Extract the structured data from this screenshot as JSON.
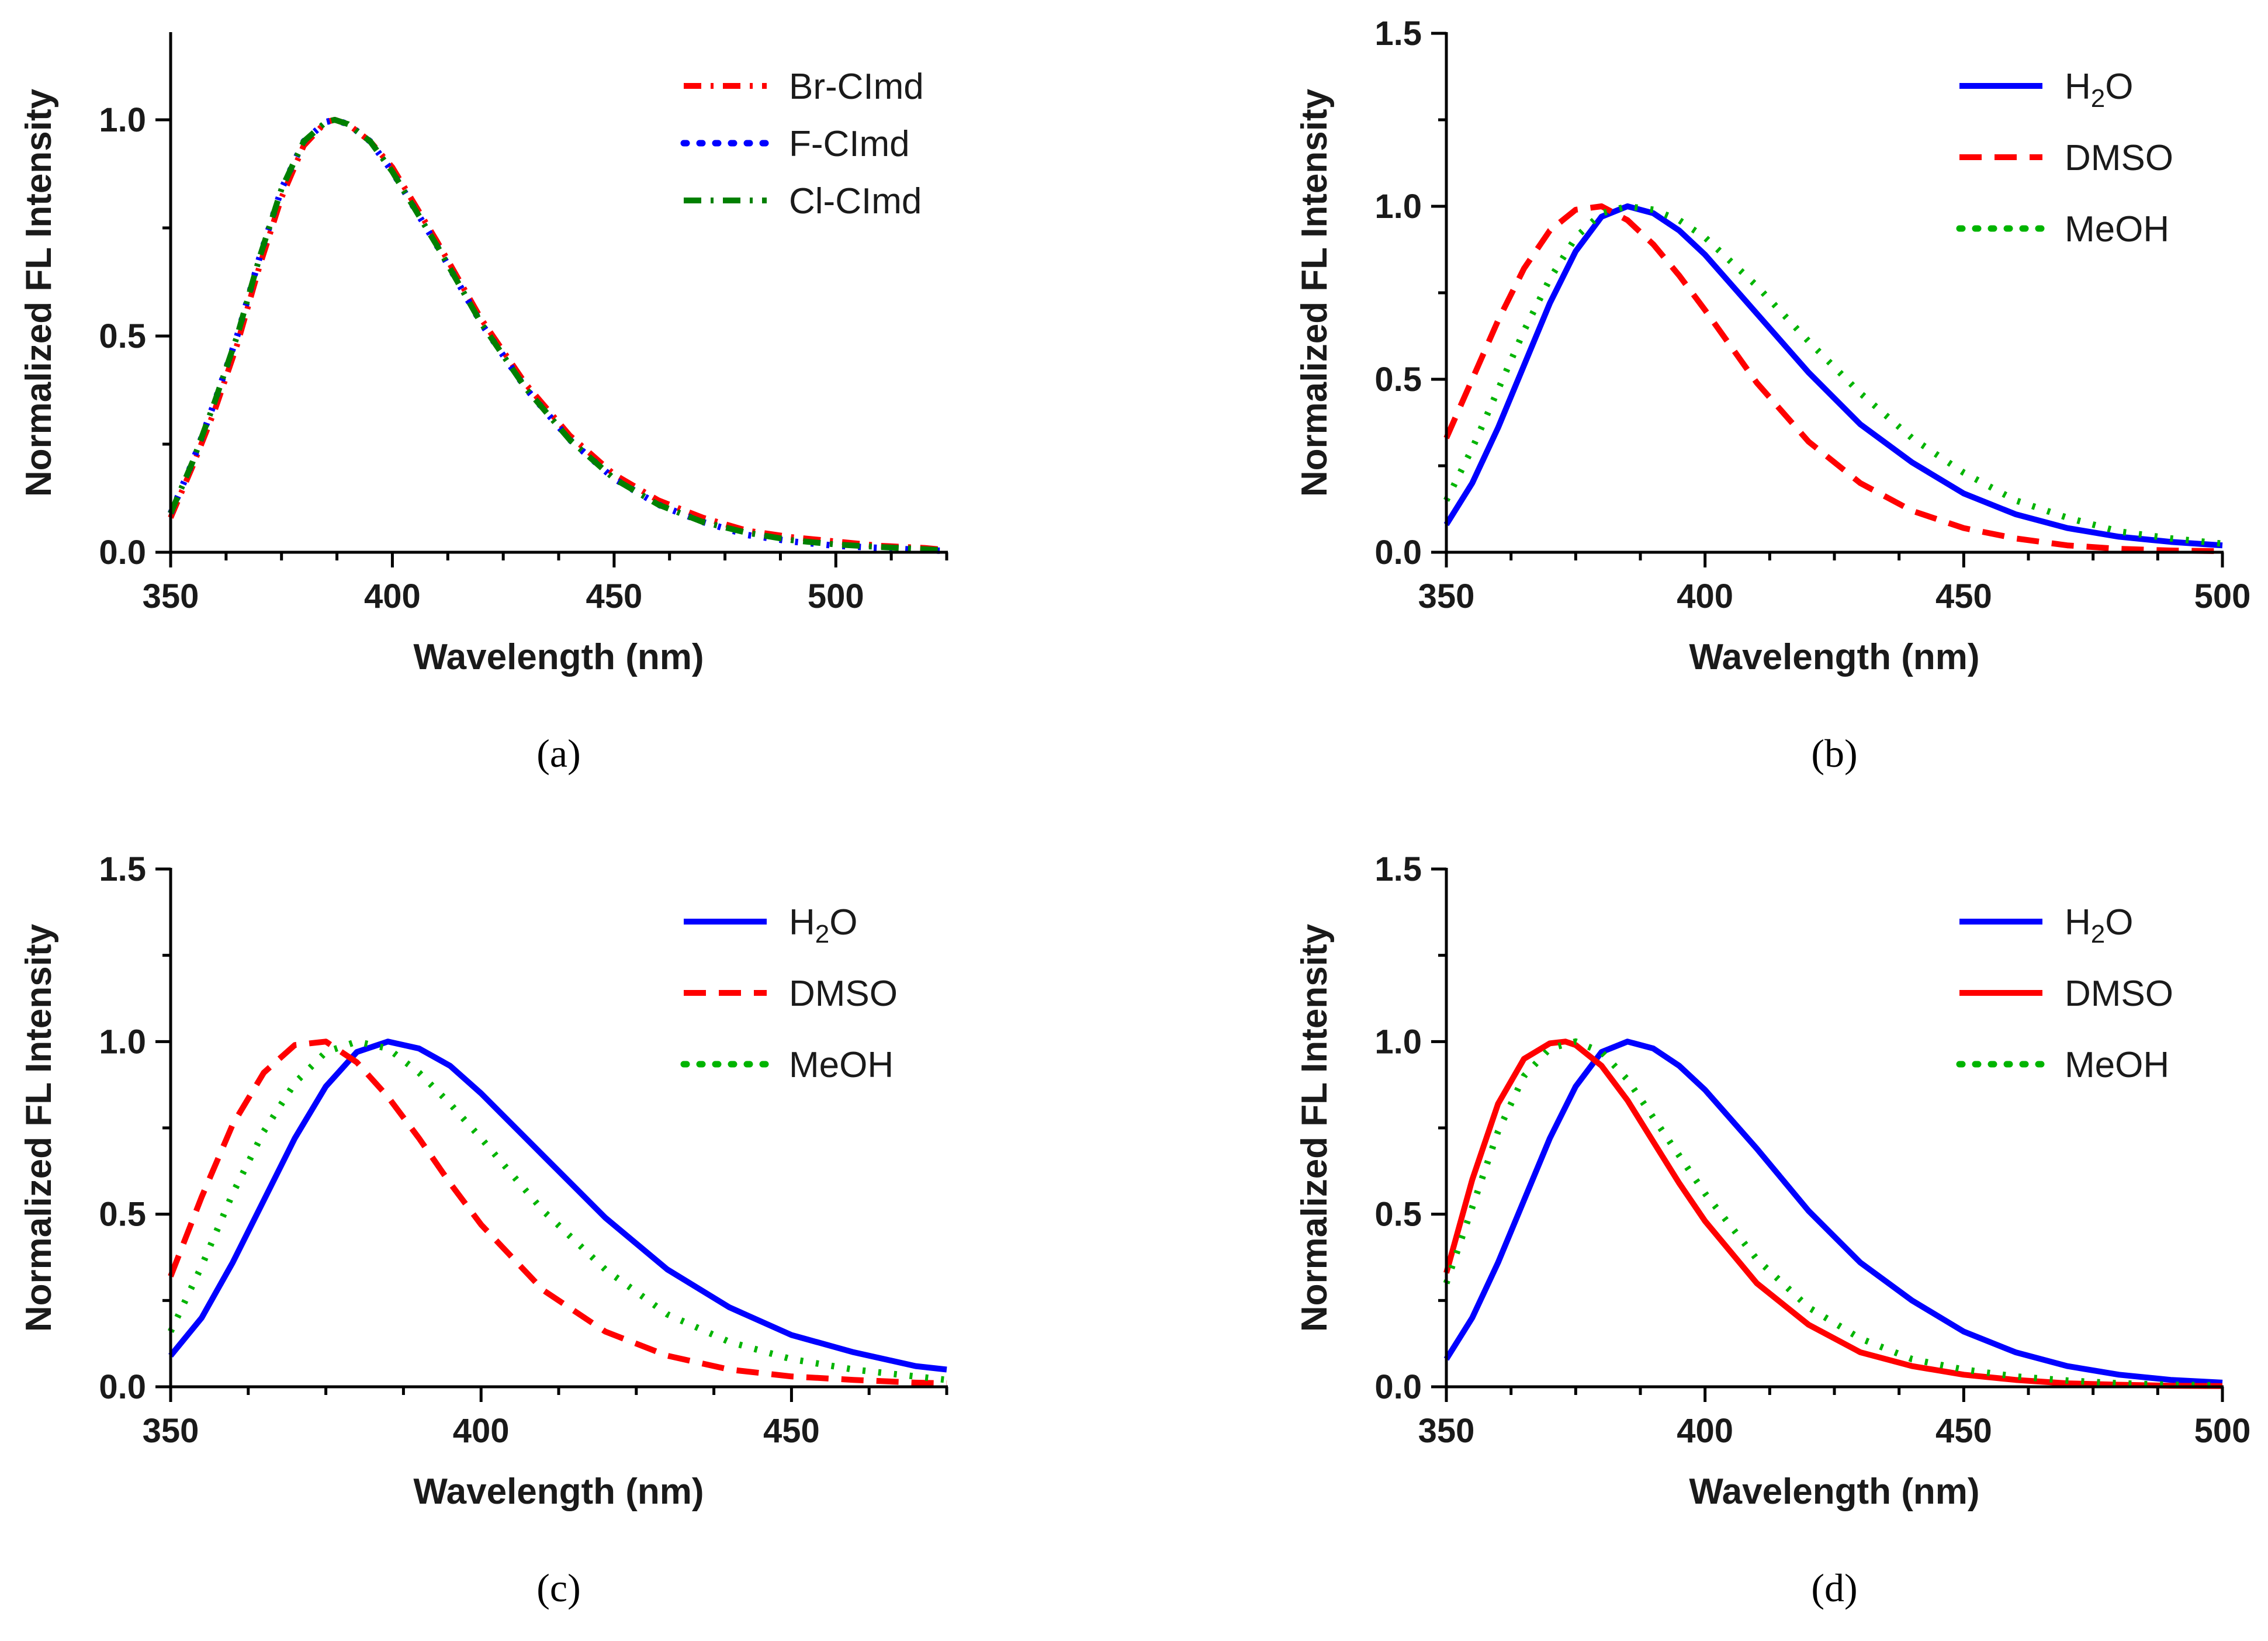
{
  "chart_data": [
    {
      "type": "line",
      "panel_label": "(a)",
      "xlabel": "Wavelength (nm)",
      "ylabel": "Normalized FL Intensity",
      "xlim": [
        350,
        525
      ],
      "ylim": [
        0,
        1.2
      ],
      "xticks": [
        350,
        400,
        450,
        500
      ],
      "xtick_labels": [
        "350",
        "400",
        "450",
        "500"
      ],
      "yticks": [
        0,
        0.5,
        1.0
      ],
      "ytick_labels": [
        "0.0",
        "0.5",
        "1.0"
      ],
      "legend_position": "top-right",
      "series": [
        {
          "name": "Br-CImd",
          "color": "#ff0000",
          "style": "dashdot",
          "x": [
            350,
            355,
            360,
            365,
            370,
            375,
            380,
            385,
            387,
            390,
            395,
            400,
            410,
            420,
            430,
            440,
            450,
            460,
            470,
            480,
            490,
            500,
            510,
            520,
            525
          ],
          "y": [
            0.08,
            0.2,
            0.33,
            0.48,
            0.66,
            0.82,
            0.94,
            0.995,
            1.0,
            0.99,
            0.95,
            0.89,
            0.72,
            0.54,
            0.39,
            0.27,
            0.18,
            0.12,
            0.08,
            0.05,
            0.035,
            0.025,
            0.015,
            0.01,
            0.005
          ]
        },
        {
          "name": "F-CImd",
          "color": "#0000ff",
          "style": "dotted",
          "x": [
            350,
            355,
            360,
            365,
            370,
            375,
            380,
            385,
            387,
            390,
            395,
            400,
            410,
            420,
            430,
            440,
            450,
            460,
            470,
            480,
            490,
            500,
            510,
            520,
            525
          ],
          "y": [
            0.09,
            0.21,
            0.35,
            0.5,
            0.68,
            0.84,
            0.95,
            0.995,
            1.0,
            0.99,
            0.95,
            0.88,
            0.71,
            0.53,
            0.38,
            0.26,
            0.17,
            0.11,
            0.07,
            0.04,
            0.025,
            0.015,
            0.01,
            0.005,
            0.003
          ]
        },
        {
          "name": "Cl-CImd",
          "color": "#008000",
          "style": "dashdot",
          "x": [
            350,
            355,
            360,
            365,
            370,
            375,
            380,
            385,
            387,
            390,
            395,
            400,
            410,
            420,
            430,
            440,
            450,
            460,
            470,
            480,
            490,
            500,
            510,
            520,
            525
          ],
          "y": [
            0.09,
            0.21,
            0.35,
            0.5,
            0.68,
            0.84,
            0.95,
            0.995,
            1.0,
            0.99,
            0.95,
            0.88,
            0.71,
            0.53,
            0.38,
            0.26,
            0.17,
            0.11,
            0.07,
            0.045,
            0.028,
            0.018,
            0.012,
            0.007,
            0.004
          ]
        }
      ]
    },
    {
      "type": "line",
      "panel_label": "(b)",
      "xlabel": "Wavelength (nm)",
      "ylabel": "Normalized FL Intensity",
      "xlim": [
        350,
        500
      ],
      "ylim": [
        0,
        1.5
      ],
      "xticks": [
        350,
        400,
        450,
        500
      ],
      "xtick_labels": [
        "350",
        "400",
        "450",
        "500"
      ],
      "yticks": [
        0,
        0.5,
        1.0,
        1.5
      ],
      "ytick_labels": [
        "0.0",
        "0.5",
        "1.0",
        "1.5"
      ],
      "legend_position": "top-right",
      "series": [
        {
          "name": "H2O",
          "label_main": "H",
          "label_sub": "2",
          "label_tail": "O",
          "color": "#0000ff",
          "style": "solid",
          "x": [
            350,
            355,
            360,
            365,
            370,
            375,
            380,
            385,
            390,
            395,
            400,
            410,
            420,
            430,
            440,
            450,
            460,
            470,
            480,
            490,
            500
          ],
          "y": [
            0.08,
            0.2,
            0.36,
            0.54,
            0.72,
            0.87,
            0.97,
            1.0,
            0.98,
            0.93,
            0.86,
            0.69,
            0.52,
            0.37,
            0.26,
            0.17,
            0.11,
            0.07,
            0.045,
            0.03,
            0.02
          ]
        },
        {
          "name": "DMSO",
          "color": "#ff0000",
          "style": "dashed",
          "x": [
            350,
            355,
            360,
            365,
            370,
            375,
            380,
            385,
            390,
            395,
            400,
            410,
            420,
            430,
            440,
            450,
            460,
            470,
            480,
            490,
            500
          ],
          "y": [
            0.33,
            0.5,
            0.67,
            0.82,
            0.93,
            0.99,
            1.0,
            0.96,
            0.89,
            0.8,
            0.7,
            0.49,
            0.32,
            0.2,
            0.12,
            0.07,
            0.04,
            0.02,
            0.01,
            0.005,
            0.003
          ]
        },
        {
          "name": "MeOH",
          "color": "#00b400",
          "style": "dotted",
          "x": [
            350,
            355,
            360,
            365,
            370,
            375,
            380,
            385,
            390,
            395,
            400,
            410,
            420,
            430,
            440,
            450,
            460,
            470,
            480,
            490,
            500
          ],
          "y": [
            0.15,
            0.3,
            0.47,
            0.64,
            0.79,
            0.91,
            0.98,
            1.0,
            0.99,
            0.96,
            0.91,
            0.77,
            0.61,
            0.46,
            0.33,
            0.23,
            0.15,
            0.1,
            0.06,
            0.04,
            0.025
          ]
        }
      ]
    },
    {
      "type": "line",
      "panel_label": "(c)",
      "xlabel": "Wavelength (nm)",
      "ylabel": "Normalized FL Intensity",
      "xlim": [
        350,
        475
      ],
      "ylim": [
        0,
        1.5
      ],
      "xticks": [
        350,
        400,
        450
      ],
      "xtick_labels": [
        "350",
        "400",
        "450"
      ],
      "yticks": [
        0,
        0.5,
        1.0,
        1.5
      ],
      "ytick_labels": [
        "0.0",
        "0.5",
        "1.0",
        "1.5"
      ],
      "legend_position": "top-right",
      "series": [
        {
          "name": "H2O",
          "label_main": "H",
          "label_sub": "2",
          "label_tail": "O",
          "color": "#0000ff",
          "style": "solid",
          "x": [
            350,
            355,
            360,
            365,
            370,
            375,
            380,
            385,
            390,
            395,
            400,
            410,
            420,
            430,
            440,
            450,
            460,
            470,
            475
          ],
          "y": [
            0.09,
            0.2,
            0.36,
            0.54,
            0.72,
            0.87,
            0.97,
            1.0,
            0.98,
            0.93,
            0.85,
            0.67,
            0.49,
            0.34,
            0.23,
            0.15,
            0.1,
            0.06,
            0.05
          ]
        },
        {
          "name": "DMSO",
          "color": "#ff0000",
          "style": "dashed",
          "x": [
            350,
            355,
            360,
            365,
            370,
            375,
            380,
            385,
            390,
            395,
            400,
            410,
            420,
            430,
            440,
            450,
            460,
            470,
            475
          ],
          "y": [
            0.32,
            0.55,
            0.76,
            0.91,
            0.99,
            1.0,
            0.94,
            0.84,
            0.72,
            0.59,
            0.47,
            0.28,
            0.16,
            0.09,
            0.05,
            0.03,
            0.02,
            0.012,
            0.01
          ]
        },
        {
          "name": "MeOH",
          "color": "#00b400",
          "style": "dotted",
          "x": [
            350,
            355,
            360,
            365,
            370,
            375,
            380,
            385,
            390,
            395,
            400,
            410,
            420,
            430,
            440,
            450,
            460,
            470,
            475
          ],
          "y": [
            0.16,
            0.35,
            0.56,
            0.74,
            0.88,
            0.97,
            1.0,
            0.98,
            0.91,
            0.82,
            0.72,
            0.51,
            0.34,
            0.21,
            0.13,
            0.08,
            0.05,
            0.03,
            0.02
          ]
        }
      ]
    },
    {
      "type": "line",
      "panel_label": "(d)",
      "xlabel": "Wavelength (nm)",
      "ylabel": "Normalized FL Intensity",
      "xlim": [
        350,
        500
      ],
      "ylim": [
        0,
        1.5
      ],
      "xticks": [
        350,
        400,
        450,
        500
      ],
      "xtick_labels": [
        "350",
        "400",
        "450",
        "500"
      ],
      "yticks": [
        0,
        0.5,
        1.0,
        1.5
      ],
      "ytick_labels": [
        "0.0",
        "0.5",
        "1.0",
        "1.5"
      ],
      "legend_position": "top-right",
      "series": [
        {
          "name": "H2O",
          "label_main": "H",
          "label_sub": "2",
          "label_tail": "O",
          "color": "#0000ff",
          "style": "solid",
          "x": [
            350,
            355,
            360,
            365,
            370,
            375,
            380,
            385,
            390,
            395,
            400,
            410,
            420,
            430,
            440,
            450,
            460,
            470,
            480,
            490,
            500
          ],
          "y": [
            0.08,
            0.2,
            0.36,
            0.54,
            0.72,
            0.87,
            0.97,
            1.0,
            0.98,
            0.93,
            0.86,
            0.69,
            0.51,
            0.36,
            0.25,
            0.16,
            0.1,
            0.06,
            0.035,
            0.02,
            0.012
          ]
        },
        {
          "name": "DMSO",
          "color": "#ff0000",
          "style": "solid",
          "x": [
            350,
            355,
            360,
            365,
            370,
            373,
            375,
            380,
            385,
            390,
            395,
            400,
            410,
            420,
            430,
            440,
            450,
            460,
            470,
            480,
            490,
            500
          ],
          "y": [
            0.33,
            0.6,
            0.82,
            0.95,
            0.995,
            1.0,
            0.99,
            0.93,
            0.83,
            0.71,
            0.59,
            0.48,
            0.3,
            0.18,
            0.1,
            0.06,
            0.035,
            0.02,
            0.01,
            0.006,
            0.003,
            0.002
          ]
        },
        {
          "name": "MeOH",
          "color": "#00b400",
          "style": "dotted",
          "x": [
            350,
            355,
            360,
            365,
            370,
            375,
            380,
            385,
            390,
            395,
            400,
            410,
            420,
            430,
            440,
            450,
            460,
            470,
            480,
            490,
            500
          ],
          "y": [
            0.3,
            0.52,
            0.74,
            0.9,
            0.98,
            1.0,
            0.97,
            0.89,
            0.78,
            0.67,
            0.56,
            0.37,
            0.23,
            0.14,
            0.08,
            0.05,
            0.03,
            0.018,
            0.01,
            0.006,
            0.004
          ]
        }
      ]
    }
  ]
}
